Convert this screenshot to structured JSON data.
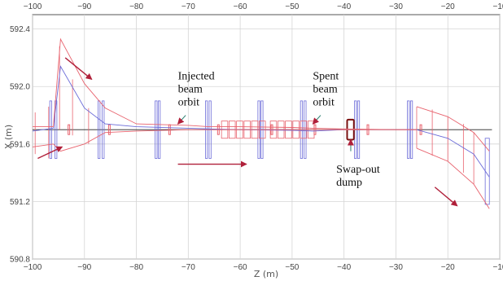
{
  "chart_data": {
    "type": "line",
    "title": "",
    "xlabel": "Z (m)",
    "ylabel": "X (m)",
    "xlim": [
      -100,
      -10
    ],
    "ylim": [
      590.8,
      592.5
    ],
    "x_ticks": [
      -100,
      -90,
      -80,
      -70,
      -60,
      -50,
      -40,
      -30,
      -20,
      -10
    ],
    "x_tick_labels": [
      "−100",
      "−90",
      "−80",
      "−70",
      "−60",
      "−50",
      "−40",
      "−30",
      "−20",
      "−10"
    ],
    "y_ticks": [
      590.8,
      591.2,
      591.6,
      592.0,
      592.4
    ],
    "y_tick_labels": [
      "590.8",
      "591.2",
      "591.6",
      "592.0",
      "592.4"
    ],
    "grid": true,
    "colors": {
      "envelope": "#e8636e",
      "orbit": "#6b6bd8",
      "arrow": "#b0203a",
      "dump": "#7a1010",
      "beamline": "#222222",
      "grid": "#d5d5d5"
    },
    "series": [
      {
        "x": [
          -100,
          -96,
          -94.6,
          -90,
          -86,
          -80,
          -70,
          -66,
          -60,
          -50,
          -46,
          -40,
          -30,
          -26,
          -20,
          -15,
          -12
        ],
        "y": [
          591.69,
          591.71,
          592.14,
          591.85,
          591.74,
          591.72,
          591.71,
          591.705,
          591.7,
          591.695,
          591.69,
          591.7,
          591.7,
          591.7,
          591.64,
          591.53,
          591.37
        ]
      },
      {
        "x": [
          -100,
          -96,
          -94.6,
          -90,
          -86,
          -80,
          -70,
          -66,
          -60,
          -50,
          -46,
          -40,
          -30,
          -26
        ],
        "y": [
          591.72,
          591.72,
          592.33,
          592.02,
          591.85,
          591.74,
          591.73,
          591.72,
          591.72,
          591.715,
          591.71,
          591.705,
          591.7,
          591.7
        ]
      },
      {
        "x": [
          -100,
          -96,
          -94.6,
          -90,
          -86,
          -80,
          -70,
          -66,
          -60,
          -50,
          -46,
          -40,
          -30,
          -26
        ],
        "y": [
          591.58,
          591.6,
          591.55,
          591.6,
          591.68,
          591.69,
          591.7,
          591.7,
          591.7,
          591.7,
          591.7,
          591.7,
          591.7,
          591.7
        ]
      },
      {
        "x": [
          -26,
          -20,
          -15,
          -12
        ],
        "y": [
          591.86,
          591.79,
          591.68,
          591.55
        ]
      },
      {
        "x": [
          -26,
          -20,
          -15,
          -12
        ],
        "y": [
          591.57,
          591.48,
          591.32,
          591.15
        ]
      }
    ],
    "annotations": [
      {
        "lines": [
          "Injected",
          "beam",
          "orbit"
        ],
        "x": -72,
        "y": 592.05
      },
      {
        "lines": [
          "Spent",
          "beam",
          "orbit"
        ],
        "x": -46,
        "y": 592.05
      },
      {
        "lines": [
          "Swap-out",
          "dump"
        ],
        "x": -41.5,
        "y": 591.4
      }
    ]
  }
}
